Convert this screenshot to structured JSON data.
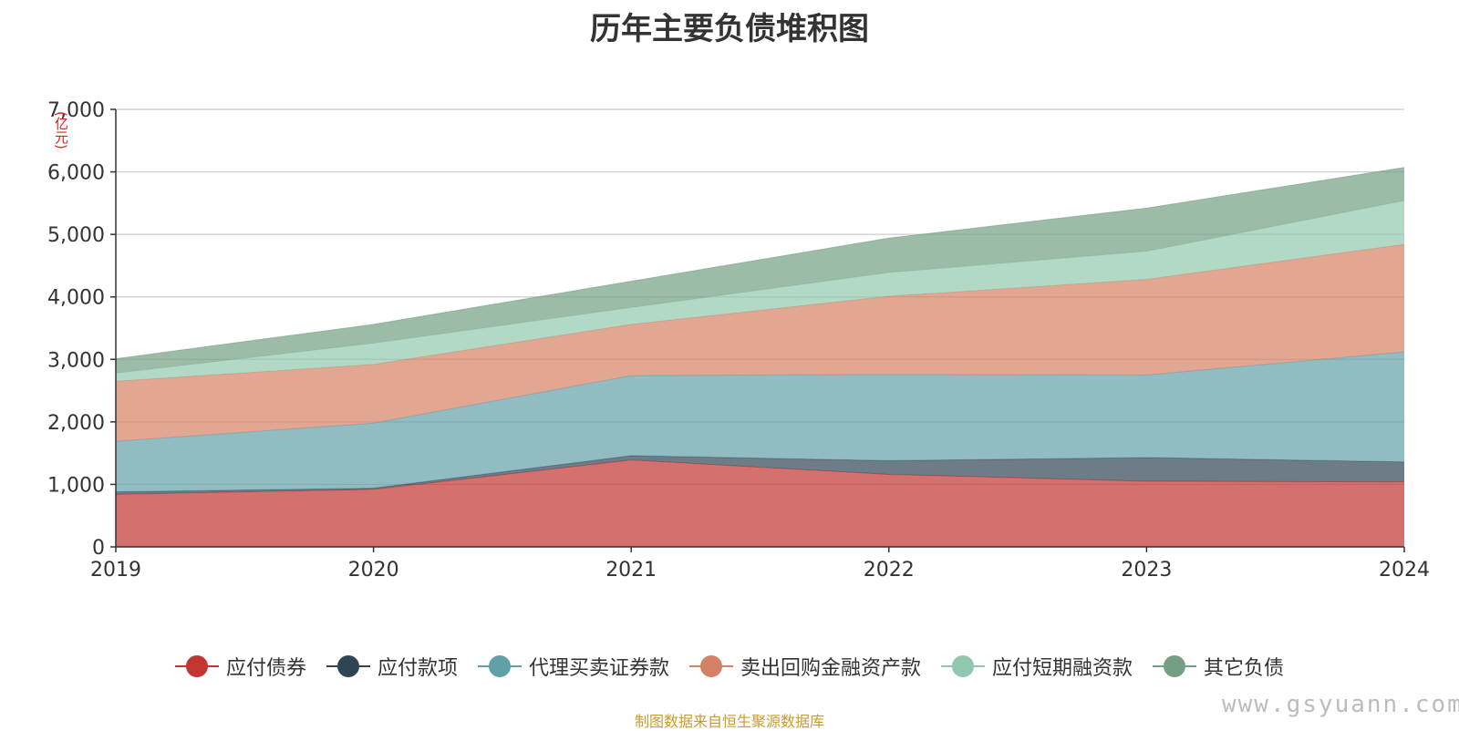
{
  "chart_data": {
    "type": "area",
    "stacked": true,
    "title": "历年主要负债堆积图",
    "unit_label": "(亿元)",
    "x": [
      "2019",
      "2020",
      "2021",
      "2022",
      "2023",
      "2024"
    ],
    "ylim": [
      0,
      7000
    ],
    "yticks": [
      0,
      1000,
      2000,
      3000,
      4000,
      5000,
      6000,
      7000
    ],
    "ytick_labels": [
      "0",
      "1,000",
      "2,000",
      "3,000",
      "4,000",
      "5,000",
      "6,000",
      "7,000"
    ],
    "grid": true,
    "legend_position": "bottom",
    "series": [
      {
        "name": "应付债券",
        "color": "#c23531",
        "values": [
          840,
          920,
          1390,
          1160,
          1050,
          1040
        ]
      },
      {
        "name": "应付款项",
        "color": "#2f4554",
        "values": [
          40,
          20,
          70,
          220,
          380,
          320
        ]
      },
      {
        "name": "代理买卖证券款",
        "color": "#61a0a8",
        "values": [
          810,
          1040,
          1280,
          1380,
          1320,
          1760
        ]
      },
      {
        "name": "卖出回购金融资产款",
        "color": "#d48265",
        "values": [
          960,
          940,
          820,
          1250,
          1530,
          1720
        ]
      },
      {
        "name": "应付短期融资款",
        "color": "#91c7ae",
        "values": [
          130,
          340,
          270,
          380,
          450,
          700
        ]
      },
      {
        "name": "其它负债",
        "color": "#749f83",
        "values": [
          230,
          300,
          420,
          550,
          690,
          530
        ]
      }
    ]
  },
  "footer": {
    "source": "制图数据来自恒生聚源数据库",
    "watermark": "www.gsyuann.com"
  }
}
